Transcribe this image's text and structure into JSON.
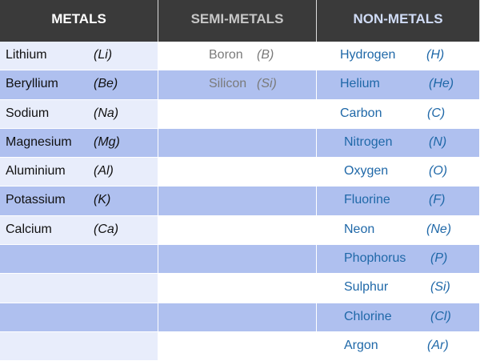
{
  "headers": {
    "metals": "METALS",
    "semi_metals": "SEMI-METALS",
    "non_metals": "NON-METALS"
  },
  "metals": [
    {
      "name": "Lithium",
      "symbol": "(Li)"
    },
    {
      "name": "Beryllium",
      "symbol": "(Be)"
    },
    {
      "name": "Sodium",
      "symbol": "(Na)"
    },
    {
      "name": "Magnesium",
      "symbol": "(Mg)"
    },
    {
      "name": "Aluminium",
      "symbol": "(Al)"
    },
    {
      "name": "Potassium",
      "symbol": "(K)"
    },
    {
      "name": "Calcium",
      "symbol": "(Ca)"
    }
  ],
  "semi_metals": [
    {
      "name": "Boron",
      "symbol": "(B)"
    },
    {
      "name": "Silicon",
      "symbol": "(Si)"
    }
  ],
  "non_metals": [
    {
      "name": "Hydrogen",
      "symbol": "(H)"
    },
    {
      "name": "Helium",
      "symbol": "(He)"
    },
    {
      "name": "Carbon",
      "symbol": "(C)"
    },
    {
      "name": "Nitrogen",
      "symbol": "(N)"
    },
    {
      "name": "Oxygen",
      "symbol": "(O)"
    },
    {
      "name": "Fluorine",
      "symbol": "(F)"
    },
    {
      "name": "Neon",
      "symbol": "(Ne)"
    },
    {
      "name": "Phophorus",
      "symbol": "(P)"
    },
    {
      "name": "Sulphur",
      "symbol": "(Si)"
    },
    {
      "name": "Chlorine",
      "symbol": "(Cl)"
    },
    {
      "name": "Argon",
      "symbol": "(Ar)"
    }
  ],
  "colors": {
    "header_bg": "#3a3a3a",
    "row_light": "#e8edfb",
    "row_dark": "#afc0ef",
    "non_metal_text": "#1f68a8",
    "semi_metal_text": "#7a7a7a"
  }
}
